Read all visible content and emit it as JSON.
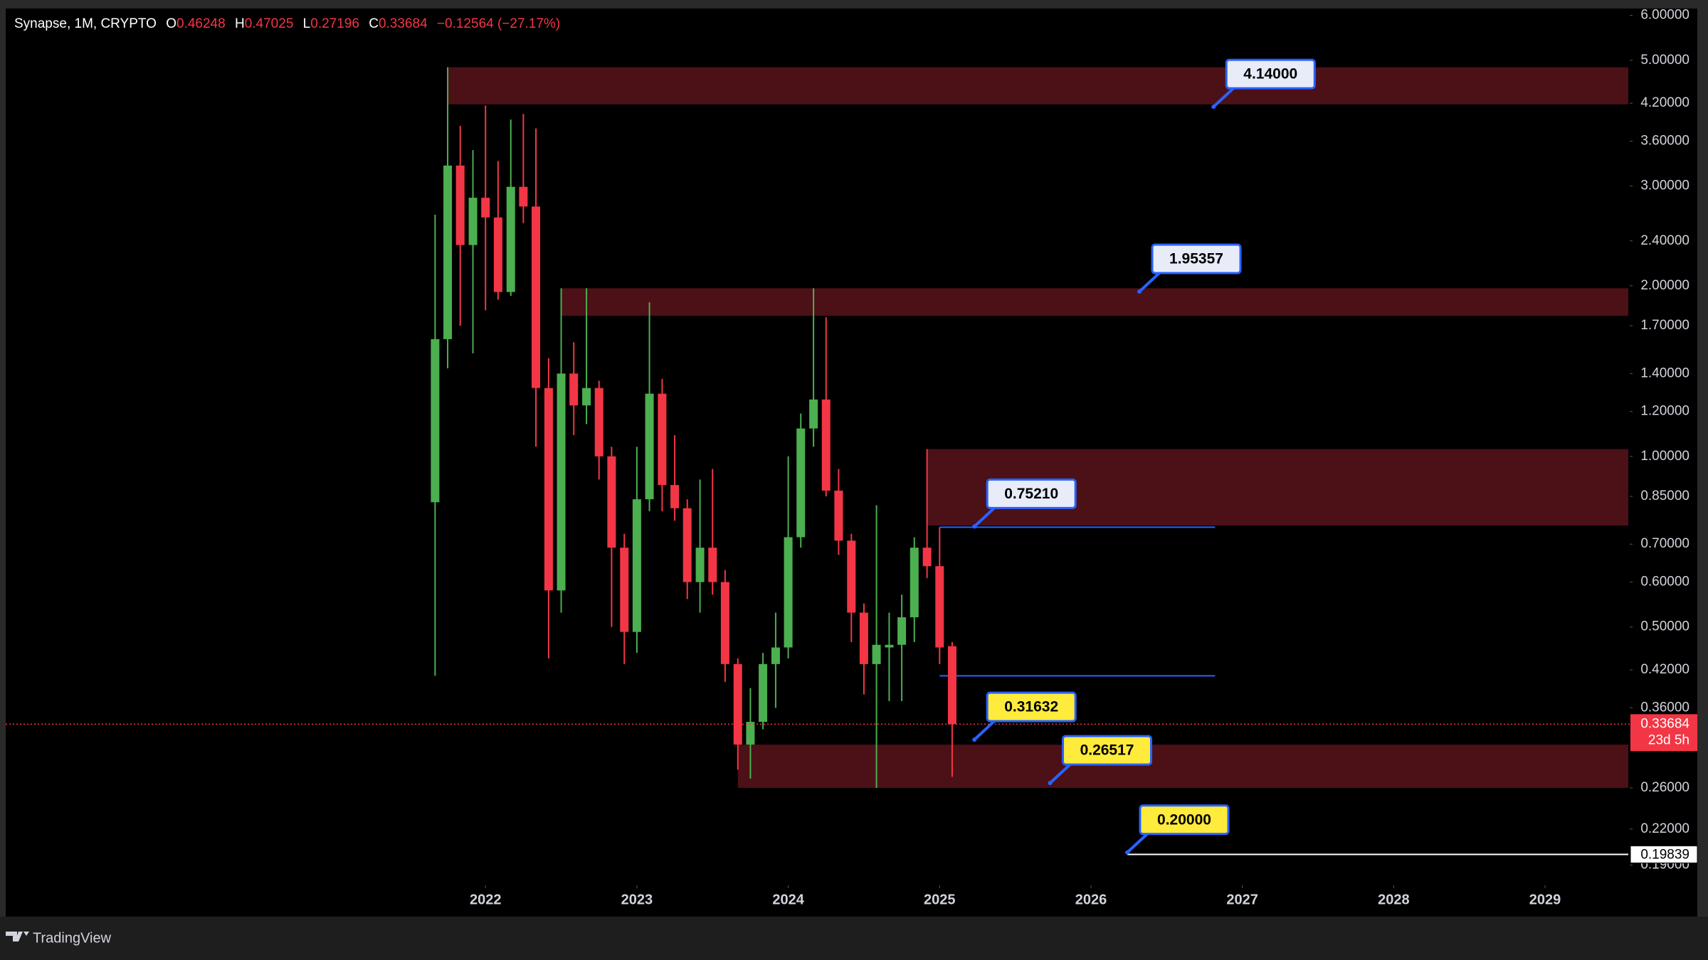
{
  "chart_data": {
    "type": "candlestick",
    "title": "Synapse, 1M, CRYPTO",
    "ohlc_labels": [
      "O",
      "H",
      "L",
      "C"
    ],
    "change_label": "−0.12564 (−27.17%)",
    "x": [
      2021.667,
      2021.75,
      2021.833,
      2021.917,
      2022,
      2022.083,
      2022.167,
      2022.25,
      2022.333,
      2022.417,
      2022.5,
      2022.583,
      2022.667,
      2022.75,
      2022.833,
      2022.917,
      2023,
      2023.083,
      2023.167,
      2023.25,
      2023.333,
      2023.417,
      2023.5,
      2023.583,
      2023.667,
      2023.75,
      2023.833,
      2023.917,
      2024,
      2024.083,
      2024.167,
      2024.25,
      2024.333,
      2024.417,
      2024.5,
      2024.583,
      2024.667,
      2024.75,
      2024.833,
      2024.917,
      2025,
      2025.083
    ],
    "open": [
      0.83,
      1.61,
      3.26,
      2.36,
      2.86,
      2.64,
      1.95,
      2.99,
      2.76,
      1.32,
      0.58,
      1.4,
      1.23,
      1.32,
      1.0,
      0.69,
      0.49,
      0.84,
      1.29,
      0.89,
      0.81,
      0.6,
      0.69,
      0.6,
      0.43,
      0.31,
      0.34,
      0.43,
      0.46,
      0.72,
      1.12,
      1.26,
      0.87,
      0.71,
      0.53,
      0.43,
      0.46,
      0.465,
      0.52,
      0.69,
      0.64,
      0.46248
    ],
    "high": [
      2.67,
      4.86,
      3.83,
      3.47,
      4.16,
      3.32,
      3.93,
      4.02,
      3.79,
      1.49,
      1.98,
      1.59,
      1.98,
      1.36,
      1.04,
      0.73,
      1.04,
      1.87,
      1.37,
      1.09,
      0.84,
      0.91,
      0.95,
      0.63,
      0.44,
      0.39,
      0.45,
      0.53,
      1.0,
      1.19,
      1.98,
      1.76,
      0.95,
      0.73,
      0.55,
      0.82,
      0.53,
      0.57,
      0.72,
      1.03,
      0.75,
      0.47025
    ],
    "low": [
      0.41,
      1.43,
      1.7,
      1.52,
      1.81,
      1.89,
      1.92,
      2.58,
      1.04,
      0.44,
      0.53,
      1.09,
      1.14,
      0.91,
      0.5,
      0.43,
      0.45,
      0.8,
      0.8,
      0.77,
      0.56,
      0.53,
      0.57,
      0.4,
      0.28,
      0.27,
      0.33,
      0.36,
      0.44,
      0.69,
      1.04,
      0.85,
      0.67,
      0.47,
      0.38,
      0.26,
      0.37,
      0.37,
      0.47,
      0.61,
      0.43,
      0.27196
    ],
    "close": [
      1.61,
      3.26,
      2.36,
      2.86,
      2.64,
      1.95,
      2.99,
      2.76,
      1.32,
      0.58,
      1.4,
      1.23,
      1.32,
      1.0,
      0.69,
      0.49,
      0.84,
      1.29,
      0.89,
      0.81,
      0.6,
      0.69,
      0.6,
      0.43,
      0.31,
      0.34,
      0.43,
      0.46,
      0.72,
      1.12,
      1.26,
      0.87,
      0.71,
      0.53,
      0.43,
      0.465,
      0.465,
      0.52,
      0.69,
      0.64,
      0.46,
      0.33684
    ],
    "up_color": "#4caf50",
    "down_color": "#f23645",
    "log_scale": true,
    "grid": false,
    "xlim": [
      2018.83,
      2029.55
    ],
    "xticks": [
      2022,
      2023,
      2024,
      2025,
      2026,
      2027,
      2028,
      2029
    ],
    "ylim": [
      0.176,
      6.17
    ],
    "yticks": [
      {
        "value": 6,
        "label": "6.00000"
      },
      {
        "value": 5,
        "label": "5.00000"
      },
      {
        "value": 4.2,
        "label": "4.20000"
      },
      {
        "value": 3.6,
        "label": "3.60000"
      },
      {
        "value": 3,
        "label": "3.00000"
      },
      {
        "value": 2.4,
        "label": "2.40000"
      },
      {
        "value": 2,
        "label": "2.00000"
      },
      {
        "value": 1.7,
        "label": "1.70000"
      },
      {
        "value": 1.4,
        "label": "1.40000"
      },
      {
        "value": 1.2,
        "label": "1.20000"
      },
      {
        "value": 1,
        "label": "1.00000"
      },
      {
        "value": 0.85,
        "label": "0.85000"
      },
      {
        "value": 0.7,
        "label": "0.70000"
      },
      {
        "value": 0.6,
        "label": "0.60000"
      },
      {
        "value": 0.5,
        "label": "0.50000"
      },
      {
        "value": 0.42,
        "label": "0.42000"
      },
      {
        "value": 0.36,
        "label": "0.36000"
      },
      {
        "value": 0.26,
        "label": "0.26000"
      },
      {
        "value": 0.22,
        "label": "0.22000"
      },
      {
        "value": 0.19,
        "label": "0.19000"
      }
    ],
    "zone_color": "#4c1017",
    "zones": [
      {
        "top": 4.86,
        "bottom": 4.18,
        "start": 2021.75
      },
      {
        "top": 1.98,
        "bottom": 1.77,
        "start": 2022.5
      },
      {
        "top": 1.03,
        "bottom": 0.755,
        "start": 2024.917
      },
      {
        "top": 0.31,
        "bottom": 0.26,
        "start": 2023.667
      }
    ],
    "level_color": "#2962ff",
    "levels": [
      {
        "value": 0.75,
        "start": 2025.0,
        "end": 2026.82
      },
      {
        "value": 0.41,
        "start": 2025.0,
        "end": 2026.82
      }
    ],
    "price_line": 0.19839,
    "price_line_start": 2026.24,
    "price_line_color": "#ffffff",
    "countdown": "23d 5h",
    "callout_border": "#2962ff",
    "callouts": [
      {
        "price": 4.14,
        "label": "4.14000",
        "x": 2026.81,
        "color": "#e8ecf8"
      },
      {
        "price": 1.95357,
        "label": "1.95357",
        "x": 2026.32,
        "color": "#e8ecf8"
      },
      {
        "price": 0.7521,
        "label": "0.75210",
        "x": 2025.23,
        "color": "#e8ecf8"
      },
      {
        "price": 0.31632,
        "label": "0.31632",
        "x": 2025.23,
        "color": "#ffeb3b"
      },
      {
        "price": 0.26517,
        "label": "0.26517",
        "x": 2025.73,
        "color": "#ffeb3b"
      },
      {
        "price": 0.2,
        "label": "0.20000",
        "x": 2026.24,
        "color": "#ffeb3b"
      }
    ]
  },
  "footer": {
    "brand": "TradingView"
  }
}
